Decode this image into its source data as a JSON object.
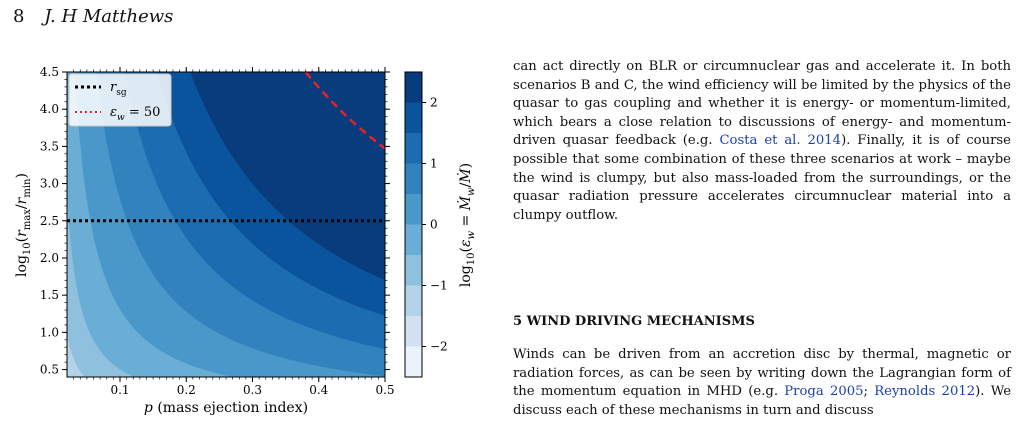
{
  "header": {
    "page_number": "8",
    "author": "J. H Matthews"
  },
  "figure": {
    "x_label": "p (mass ejection index)",
    "y_label_text": "log10(rmax/rmin)",
    "cbar_label_text": "log10(ε_w = Ṁ_w/Ṁ)",
    "legend": [
      {
        "label": "r_sg",
        "style": "dotted",
        "color": "#000000"
      },
      {
        "label": "ε_w = 50",
        "style": "dotted",
        "color": "#e8202a"
      }
    ]
  },
  "chart_data": {
    "type": "contour",
    "title": "",
    "xlabel": "p (mass ejection index)",
    "ylabel": "log10(r_max/r_min)",
    "xlim": [
      0.02,
      0.5
    ],
    "ylim": [
      0.4,
      4.5
    ],
    "x_ticks": [
      "0.1",
      "0.2",
      "0.3",
      "0.4",
      "0.5"
    ],
    "y_ticks": [
      "0.5",
      "1.0",
      "1.5",
      "2.0",
      "2.5",
      "3.0",
      "3.5",
      "4.0",
      "4.5"
    ],
    "colorbar": {
      "label": "log10(ε_w = Ṁ_w/Ṁ)",
      "range": [
        -2.5,
        2.5
      ],
      "ticks": [
        "−2",
        "−1",
        "0",
        "1",
        "2"
      ],
      "levels": [
        -2.5,
        -2,
        -1.5,
        -1,
        -0.5,
        0,
        0.5,
        1,
        1.5,
        2,
        2.5
      ],
      "colors": [
        "#eaf2fb",
        "#d0e1f2",
        "#b3d3e9",
        "#8fc1de",
        "#6aaed6",
        "#4a98c9",
        "#3282be",
        "#1c6cb1",
        "#0a549e",
        "#083c7d"
      ]
    },
    "lines": [
      {
        "name": "r_sg",
        "y": 2.5,
        "color": "#000000"
      },
      {
        "name": "ε_w = 50",
        "x": [
          0.38,
          0.4,
          0.42,
          0.44,
          0.46,
          0.48,
          0.5
        ],
        "y": [
          4.5,
          4.29,
          4.1,
          3.92,
          3.76,
          3.61,
          3.47
        ],
        "color": "#e8202a"
      }
    ],
    "legend_position": "top-left"
  },
  "text": {
    "para1": "can act directly on BLR or circumnuclear gas and accelerate it. In both scenarios B and C, the wind efficiency will be limited by the physics of the quasar to gas coupling and whether it is energy- or momentum-limited, which bears a close relation to discussions of energy- and momentum-driven quasar feedback (e.g. ",
    "cite1": "Costa et al. 2014",
    "para1_end": "). Finally, it is of course possible that some combination of these three scenarios at work – maybe the wind is clumpy, but also mass-loaded from the surroundings, or the quasar radiation pressure accelerates circumnuclear material into a clumpy outflow.",
    "section_heading": "5  WIND DRIVING MECHANISMS",
    "para2": "Winds can be driven from an accretion disc by thermal, magnetic or radiation forces, as can be seen by writing down the Lagrangian form of the momentum equation in MHD (e.g. ",
    "cite2": "Proga 2005",
    "sep": "; ",
    "cite3": "Reynolds 2012",
    "para2_end": "). We discuss each of these mechanisms in turn and discuss"
  }
}
